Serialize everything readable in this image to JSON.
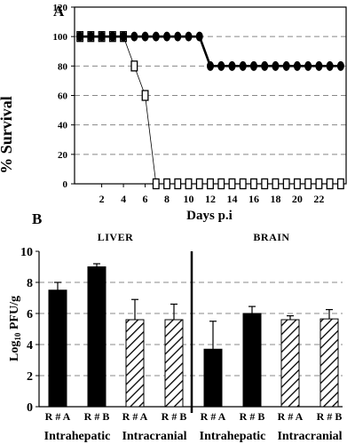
{
  "chart_data": [
    {
      "panel": "A",
      "type": "line",
      "xlabel": "Days p.i",
      "ylabel": "% Survival",
      "ylim": [
        0,
        120
      ],
      "xlim": [
        -0.5,
        24.5
      ],
      "y_ticks": [
        0,
        20,
        40,
        60,
        80,
        100,
        120
      ],
      "x_ticks": [
        2,
        4,
        6,
        8,
        10,
        12,
        14,
        16,
        18,
        20,
        22
      ],
      "grid": "horizontal dashed",
      "series": [
        {
          "marker": "filled-circle",
          "points": [
            [
              0,
              100
            ],
            [
              1,
              100
            ],
            [
              2,
              100
            ],
            [
              3,
              100
            ],
            [
              4,
              100
            ],
            [
              5,
              100
            ],
            [
              6,
              100
            ],
            [
              7,
              100
            ],
            [
              8,
              100
            ],
            [
              9,
              100
            ],
            [
              10,
              100
            ],
            [
              11,
              100
            ],
            [
              12,
              80
            ],
            [
              13,
              80
            ],
            [
              14,
              80
            ],
            [
              15,
              80
            ],
            [
              16,
              80
            ],
            [
              17,
              80
            ],
            [
              18,
              80
            ],
            [
              19,
              80
            ],
            [
              20,
              80
            ],
            [
              21,
              80
            ],
            [
              22,
              80
            ],
            [
              23,
              80
            ],
            [
              24,
              80
            ]
          ]
        },
        {
          "marker": "open-square",
          "points": [
            [
              0,
              100
            ],
            [
              1,
              100
            ],
            [
              2,
              100
            ],
            [
              3,
              100
            ],
            [
              4,
              100
            ],
            [
              5,
              80
            ],
            [
              6,
              60
            ],
            [
              7,
              0
            ],
            [
              8,
              0
            ],
            [
              9,
              0
            ],
            [
              10,
              0
            ],
            [
              11,
              0
            ],
            [
              12,
              0
            ],
            [
              13,
              0
            ],
            [
              14,
              0
            ],
            [
              15,
              0
            ],
            [
              16,
              0
            ],
            [
              17,
              0
            ],
            [
              18,
              0
            ],
            [
              19,
              0
            ],
            [
              20,
              0
            ],
            [
              21,
              0
            ],
            [
              22,
              0
            ],
            [
              23,
              0
            ],
            [
              24,
              0
            ]
          ]
        }
      ]
    },
    {
      "panel": "B",
      "type": "bar",
      "ylabel_main": "Log",
      "ylabel_sub": "10",
      "ylabel_rest": " PFU/g",
      "ylim": [
        0,
        10
      ],
      "y_ticks": [
        0,
        2,
        4,
        6,
        8,
        10
      ],
      "grid": "horizontal dashed",
      "sections": [
        "LIVER",
        "BRAIN"
      ],
      "groups": [
        "Intrahepatic",
        "Intracranial",
        "Intrahepatic",
        "Intracranial"
      ],
      "categories": [
        "R # A",
        "R # B",
        "R # A",
        "R # B",
        "R # A",
        "R # B",
        "R # A",
        "R # B"
      ],
      "values": [
        7.5,
        9.0,
        5.6,
        5.6,
        3.7,
        6.0,
        5.6,
        5.65
      ],
      "errors": [
        0.5,
        0.2,
        1.3,
        1.0,
        1.8,
        0.45,
        0.25,
        0.6
      ],
      "fills": [
        "solid",
        "solid",
        "hatched",
        "hatched",
        "solid",
        "solid",
        "hatched",
        "hatched"
      ]
    }
  ]
}
